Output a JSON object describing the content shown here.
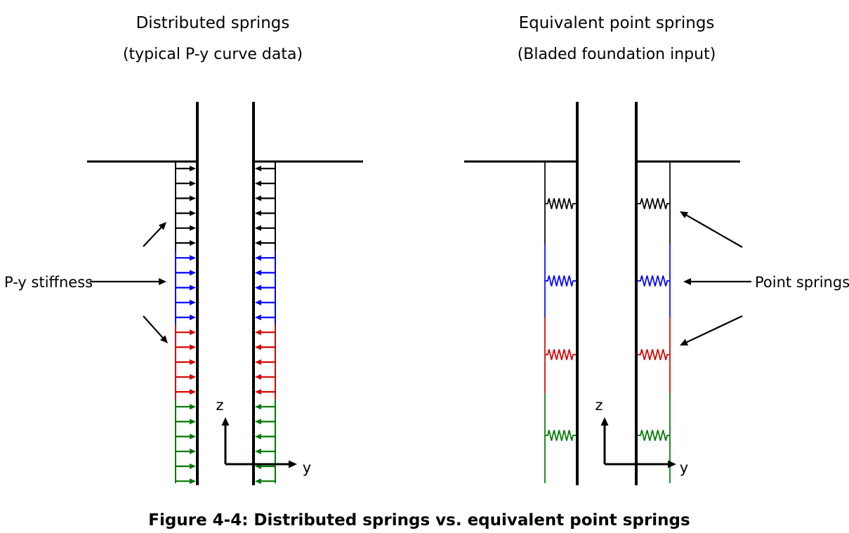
{
  "figure_caption": "Figure 4-4: Distributed springs vs. equivalent point springs",
  "left_panel": {
    "title": "Distributed springs",
    "subtitle": "(typical P-y curve data)",
    "annotation": "P-y stiffness",
    "axis": {
      "vertical": "z",
      "horizontal": "y"
    }
  },
  "right_panel": {
    "title": "Equivalent point springs",
    "subtitle": "(Bladed foundation input)",
    "annotation": "Point springs",
    "axis": {
      "vertical": "z",
      "horizontal": "y"
    }
  },
  "ink_color": "#000000",
  "soil_layers": [
    {
      "name": "layer-1-black",
      "color": "#000000",
      "distributed_arrows_per_side": 6,
      "point_springs_per_side": 1
    },
    {
      "name": "layer-2-blue",
      "color": "#0000ff",
      "distributed_arrows_per_side": 5,
      "point_springs_per_side": 1
    },
    {
      "name": "layer-3-red",
      "color": "#d40000",
      "distributed_arrows_per_side": 5,
      "point_springs_per_side": 1
    },
    {
      "name": "layer-4-green",
      "color": "#007700",
      "distributed_arrows_per_side": 6,
      "point_springs_per_side": 1
    }
  ]
}
